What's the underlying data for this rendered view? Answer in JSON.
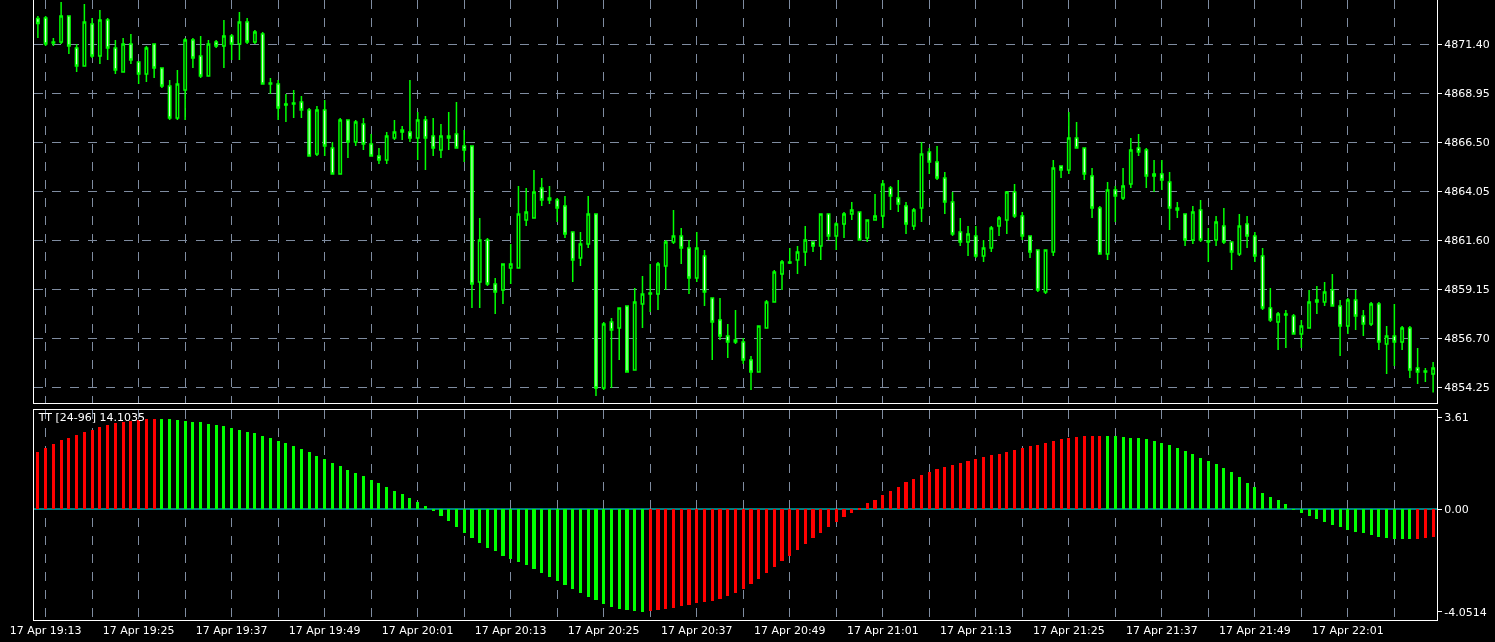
{
  "chart_data": [
    {
      "type": "candlestick",
      "color": "#00ff00",
      "tick_labels": "y",
      "grid": true,
      "categories": [
        null,
        null,
        null,
        null,
        null,
        null,
        null,
        null,
        null,
        null,
        null,
        null,
        null,
        null,
        null,
        null,
        null,
        null,
        null,
        null,
        null,
        null,
        null,
        null,
        null,
        null,
        null,
        null,
        null,
        null,
        null,
        null,
        null,
        null,
        null,
        null,
        null,
        null,
        null,
        null,
        null,
        null,
        null,
        null,
        null,
        null,
        null,
        null,
        null,
        null,
        null,
        null,
        null,
        null,
        null,
        null,
        null,
        null,
        null,
        null,
        null,
        null,
        null,
        null,
        null,
        null,
        null,
        null,
        null,
        null,
        null,
        null,
        null,
        null,
        null,
        null,
        null,
        null,
        null,
        null,
        null,
        null,
        null,
        null,
        null,
        null,
        null,
        null,
        null,
        null,
        null,
        null,
        null,
        null,
        null,
        null,
        null,
        null,
        null,
        null,
        null,
        null,
        null,
        null,
        null,
        null,
        null,
        null,
        null,
        null,
        null,
        null,
        null,
        null,
        null,
        null,
        null,
        null,
        null,
        null,
        null,
        null,
        null,
        null,
        null,
        null,
        null,
        null,
        null,
        null,
        null,
        null,
        null,
        null,
        null,
        null,
        null,
        null,
        null,
        null,
        null,
        null,
        null,
        null,
        null,
        null,
        null,
        null,
        null,
        null,
        null,
        null,
        null,
        null,
        null,
        null,
        null,
        null,
        null,
        null,
        null,
        null,
        null,
        null,
        null,
        null,
        null,
        null,
        null,
        null,
        null,
        null,
        null,
        null,
        null,
        null,
        null,
        null,
        null,
        null,
        null
      ],
      "ylim": [
        4853.45,
        4873.6
      ],
      "yticks": [
        {
          "value": 4854.25,
          "label": "4854.25"
        },
        {
          "value": 4856.7,
          "label": "4856.70"
        },
        {
          "value": 4859.15,
          "label": "4859.15"
        },
        {
          "value": 4861.6,
          "label": "4861.60"
        },
        {
          "value": 4864.05,
          "label": "4864.05"
        },
        {
          "value": 4866.5,
          "label": "4866.50"
        },
        {
          "value": 4868.95,
          "label": "4868.95"
        },
        {
          "value": 4871.4,
          "label": "4871.40"
        }
      ],
      "ohlc": [
        [
          4872.68,
          4872.8,
          4871.7,
          4872.42
        ],
        [
          4872.7,
          4872.8,
          4871.3,
          4871.4
        ],
        [
          4871.5,
          4871.7,
          4871.3,
          4871.45
        ],
        [
          4871.5,
          4873.5,
          4871.4,
          4872.8
        ],
        [
          4872.8,
          4872.8,
          4870.9,
          4871.3
        ],
        [
          4871.2,
          4871.4,
          4870.0,
          4870.3
        ],
        [
          4870.3,
          4873.4,
          4870.3,
          4872.5
        ],
        [
          4872.4,
          4872.7,
          4870.7,
          4870.8
        ],
        [
          4870.8,
          4873.1,
          4870.4,
          4872.6
        ],
        [
          4872.6,
          4872.7,
          4870.6,
          4871.2
        ],
        [
          4871.2,
          4871.6,
          4869.9,
          4870.1
        ],
        [
          4870.0,
          4871.7,
          4870.0,
          4871.4
        ],
        [
          4871.4,
          4871.9,
          4870.4,
          4870.6
        ],
        [
          4870.5,
          4870.5,
          4869.4,
          4869.9
        ],
        [
          4869.9,
          4871.3,
          4869.5,
          4871.2
        ],
        [
          4871.4,
          4871.4,
          4869.7,
          4870.2
        ],
        [
          4870.2,
          4870.2,
          4869.2,
          4869.3
        ],
        [
          4869.3,
          4869.6,
          4867.6,
          4867.7
        ],
        [
          4867.7,
          4870.1,
          4867.6,
          4869.4
        ],
        [
          4869.1,
          4871.7,
          4867.6,
          4871.6
        ],
        [
          4871.6,
          4871.7,
          4870.2,
          4870.7
        ],
        [
          4870.8,
          4871.8,
          4869.7,
          4869.8
        ],
        [
          4869.8,
          4871.6,
          4869.8,
          4871.4
        ],
        [
          4871.5,
          4871.6,
          4871.2,
          4871.3
        ],
        [
          4871.3,
          4872.6,
          4870.2,
          4871.8
        ],
        [
          4871.8,
          4871.9,
          4870.6,
          4871.4
        ],
        [
          4871.4,
          4873.0,
          4870.6,
          4872.5
        ],
        [
          4872.5,
          4872.7,
          4871.4,
          4871.5
        ],
        [
          4871.5,
          4872.1,
          4871.4,
          4872.0
        ],
        [
          4871.9,
          4872.0,
          4869.4,
          4869.4
        ],
        [
          4869.45,
          4869.7,
          4868.9,
          4869.4
        ],
        [
          4869.4,
          4869.6,
          4867.6,
          4868.2
        ],
        [
          4868.4,
          4868.9,
          4867.5,
          4868.35
        ],
        [
          4868.45,
          4869.1,
          4867.7,
          4868.4
        ],
        [
          4868.5,
          4868.8,
          4867.7,
          4868.1
        ],
        [
          4868.1,
          4868.2,
          4865.8,
          4865.8
        ],
        [
          4865.9,
          4868.3,
          4865.8,
          4868.1
        ],
        [
          4868.1,
          4868.6,
          4865.8,
          4866.3
        ],
        [
          4866.2,
          4866.5,
          4864.9,
          4864.9
        ],
        [
          4864.9,
          4867.7,
          4864.9,
          4867.6
        ],
        [
          4867.6,
          4867.6,
          4865.7,
          4866.5
        ],
        [
          4866.5,
          4867.6,
          4866.3,
          4867.5
        ],
        [
          4867.4,
          4867.7,
          4866.1,
          4866.4
        ],
        [
          4866.4,
          4866.9,
          4865.8,
          4865.8
        ],
        [
          4865.8,
          4866.2,
          4865.4,
          4865.6
        ],
        [
          4865.6,
          4867.0,
          4865.4,
          4866.8
        ],
        [
          4866.7,
          4867.6,
          4866.6,
          4867.0
        ],
        [
          4867.0,
          4867.3,
          4866.6,
          4867.1
        ],
        [
          4867.0,
          4869.6,
          4866.5,
          4866.7
        ],
        [
          4866.7,
          4868.0,
          4865.6,
          4867.6
        ],
        [
          4867.6,
          4867.8,
          4865.1,
          4866.7
        ],
        [
          4866.8,
          4867.7,
          4865.8,
          4866.2
        ],
        [
          4866.1,
          4867.4,
          4865.7,
          4866.8
        ],
        [
          4866.7,
          4868.0,
          4866.1,
          4866.8
        ],
        [
          4866.9,
          4868.5,
          4866.2,
          4866.2
        ],
        [
          4866.3,
          4867.1,
          4865.5,
          4866.1
        ],
        [
          4866.3,
          4866.3,
          4858.2,
          4859.4
        ],
        [
          4859.5,
          4862.7,
          4858.2,
          4861.6
        ],
        [
          4861.6,
          4861.7,
          4859.3,
          4859.4
        ],
        [
          4859.4,
          4859.7,
          4857.9,
          4859.0
        ],
        [
          4859.1,
          4860.4,
          4858.4,
          4860.4
        ],
        [
          4860.2,
          4861.4,
          4859.4,
          4860.4
        ],
        [
          4860.2,
          4864.3,
          4860.2,
          4862.9
        ],
        [
          4862.6,
          4864.2,
          4862.3,
          4863.0
        ],
        [
          4862.7,
          4865.1,
          4862.7,
          4864.0
        ],
        [
          4864.2,
          4864.7,
          4863.3,
          4863.6
        ],
        [
          4863.7,
          4864.3,
          4863.4,
          4863.6
        ],
        [
          4863.6,
          4863.7,
          4862.5,
          4863.2
        ],
        [
          4863.3,
          4863.8,
          4861.7,
          4861.9
        ],
        [
          4862.0,
          4862.0,
          4859.5,
          4860.6
        ],
        [
          4860.7,
          4862.0,
          4860.3,
          4861.4
        ],
        [
          4861.4,
          4863.8,
          4861.2,
          4862.9
        ],
        [
          4862.9,
          4862.9,
          4853.8,
          4854.2
        ],
        [
          4854.2,
          4857.5,
          4854.1,
          4857.4
        ],
        [
          4857.5,
          4857.7,
          4854.2,
          4857.1
        ],
        [
          4857.2,
          4858.2,
          4855.6,
          4858.2
        ],
        [
          4858.3,
          4858.3,
          4855.0,
          4855.0
        ],
        [
          4855.1,
          4859.2,
          4855.1,
          4858.5
        ],
        [
          4858.4,
          4859.8,
          4857.2,
          4858.9
        ],
        [
          4858.9,
          4860.4,
          4858.0,
          4858.95
        ],
        [
          4858.9,
          4860.5,
          4858.1,
          4860.4
        ],
        [
          4860.3,
          4861.6,
          4859.1,
          4861.5
        ],
        [
          4861.5,
          4863.1,
          4861.4,
          4861.8
        ],
        [
          4861.8,
          4862.2,
          4860.4,
          4861.2
        ],
        [
          4861.2,
          4861.6,
          4858.9,
          4859.7
        ],
        [
          4859.7,
          4862.0,
          4859.5,
          4861.2
        ],
        [
          4860.8,
          4861.1,
          4858.3,
          4859.0
        ],
        [
          4858.7,
          4858.7,
          4855.6,
          4857.5
        ],
        [
          4857.6,
          4858.7,
          4856.6,
          4856.8
        ],
        [
          4856.8,
          4857.4,
          4855.7,
          4856.5
        ],
        [
          4856.6,
          4858.1,
          4856.4,
          4856.5
        ],
        [
          4856.5,
          4856.7,
          4855.4,
          4855.6
        ],
        [
          4855.6,
          4855.8,
          4854.1,
          4855.0
        ],
        [
          4855.0,
          4857.3,
          4855.0,
          4857.3
        ],
        [
          4857.2,
          4858.6,
          4857.2,
          4858.5
        ],
        [
          4858.5,
          4860.1,
          4858.5,
          4860.0
        ],
        [
          4859.9,
          4860.6,
          4859.1,
          4860.5
        ],
        [
          4860.45,
          4861.2,
          4860.4,
          4860.5
        ],
        [
          4860.6,
          4861.3,
          4859.9,
          4861.0
        ],
        [
          4861.0,
          4862.3,
          4860.3,
          4861.6
        ],
        [
          4861.5,
          4861.5,
          4861.0,
          4861.3
        ],
        [
          4861.3,
          4862.9,
          4860.6,
          4862.9
        ],
        [
          4862.9,
          4862.9,
          4861.6,
          4861.8
        ],
        [
          4861.8,
          4862.5,
          4861.1,
          4862.4
        ],
        [
          4862.4,
          4863.0,
          4861.7,
          4862.9
        ],
        [
          4862.9,
          4863.5,
          4862.6,
          4863.1
        ],
        [
          4863.0,
          4863.0,
          4861.6,
          4861.6
        ],
        [
          4861.7,
          4862.6,
          4861.5,
          4862.6
        ],
        [
          4862.6,
          4863.9,
          4862.6,
          4862.8
        ],
        [
          4862.8,
          4864.6,
          4862.2,
          4864.4
        ],
        [
          4864.2,
          4864.3,
          4863.1,
          4863.8
        ],
        [
          4863.7,
          4864.6,
          4863.0,
          4863.4
        ],
        [
          4863.3,
          4863.5,
          4861.9,
          4862.4
        ],
        [
          4862.3,
          4863.2,
          4862.1,
          4863.1
        ],
        [
          4863.2,
          4866.5,
          4862.5,
          4865.9
        ],
        [
          4866.0,
          4866.2,
          4864.9,
          4865.5
        ],
        [
          4865.5,
          4866.3,
          4864.6,
          4864.7
        ],
        [
          4864.7,
          4865.0,
          4862.9,
          4863.5
        ],
        [
          4863.5,
          4864.0,
          4861.8,
          4861.9
        ],
        [
          4862.0,
          4862.7,
          4861.3,
          4861.5
        ],
        [
          4861.5,
          4862.3,
          4860.8,
          4861.9
        ],
        [
          4861.8,
          4862.3,
          4860.7,
          4860.8
        ],
        [
          4860.8,
          4861.6,
          4860.5,
          4861.2
        ],
        [
          4861.2,
          4862.3,
          4861.0,
          4862.2
        ],
        [
          4862.3,
          4862.8,
          4861.8,
          4862.7
        ],
        [
          4862.6,
          4864.0,
          4861.9,
          4864.0
        ],
        [
          4864.0,
          4864.4,
          4862.7,
          4862.8
        ],
        [
          4862.8,
          4863.0,
          4861.6,
          4861.8
        ],
        [
          4861.8,
          4861.8,
          4860.7,
          4861.0
        ],
        [
          4861.1,
          4861.1,
          4859.0,
          4859.1
        ],
        [
          4859.0,
          4861.1,
          4858.9,
          4861.1
        ],
        [
          4861.0,
          4865.6,
          4860.8,
          4865.2
        ],
        [
          4865.3,
          4865.3,
          4864.7,
          4865.1
        ],
        [
          4865.1,
          4868.0,
          4864.9,
          4866.7
        ],
        [
          4866.7,
          4867.5,
          4866.2,
          4866.2
        ],
        [
          4866.2,
          4866.2,
          4864.6,
          4864.9
        ],
        [
          4864.8,
          4865.2,
          4862.7,
          4863.2
        ],
        [
          4863.2,
          4863.3,
          4860.9,
          4860.9
        ],
        [
          4860.9,
          4864.5,
          4860.6,
          4864.1
        ],
        [
          4864.1,
          4864.3,
          4862.5,
          4863.8
        ],
        [
          4863.7,
          4865.2,
          4863.6,
          4864.3
        ],
        [
          4864.4,
          4866.7,
          4864.2,
          4866.1
        ],
        [
          4866.2,
          4866.9,
          4865.8,
          4866.0
        ],
        [
          4866.1,
          4866.2,
          4864.2,
          4864.8
        ],
        [
          4864.9,
          4865.6,
          4864.0,
          4864.8
        ],
        [
          4864.9,
          4865.6,
          4864.1,
          4864.6
        ],
        [
          4864.5,
          4865.0,
          4862.1,
          4863.2
        ],
        [
          4863.2,
          4863.5,
          4862.7,
          4863.1
        ],
        [
          4862.9,
          4862.9,
          4861.3,
          4861.6
        ],
        [
          4861.6,
          4863.3,
          4861.4,
          4863.0
        ],
        [
          4863.1,
          4863.6,
          4861.5,
          4861.6
        ],
        [
          4861.55,
          4862.2,
          4860.5,
          4861.5
        ],
        [
          4861.6,
          4862.8,
          4861.3,
          4862.5
        ],
        [
          4862.3,
          4863.2,
          4861.4,
          4861.5
        ],
        [
          4861.5,
          4861.5,
          4860.1,
          4861.0
        ],
        [
          4860.9,
          4862.9,
          4860.8,
          4862.3
        ],
        [
          4862.4,
          4862.8,
          4861.2,
          4861.8
        ],
        [
          4861.8,
          4862.0,
          4860.5,
          4860.8
        ],
        [
          4860.8,
          4861.2,
          4858.1,
          4858.2
        ],
        [
          4858.2,
          4859.2,
          4857.5,
          4857.6
        ],
        [
          4857.5,
          4858.0,
          4856.1,
          4857.9
        ],
        [
          4857.85,
          4858.1,
          4856.2,
          4857.9
        ],
        [
          4857.8,
          4857.9,
          4856.9,
          4856.9
        ],
        [
          4856.9,
          4857.6,
          4856.2,
          4857.3
        ],
        [
          4857.2,
          4859.1,
          4857.2,
          4858.5
        ],
        [
          4858.5,
          4859.3,
          4857.9,
          4858.6
        ],
        [
          4858.5,
          4859.5,
          4858.3,
          4859.0
        ],
        [
          4859.1,
          4859.9,
          4858.3,
          4858.3
        ],
        [
          4858.3,
          4858.6,
          4855.8,
          4857.3
        ],
        [
          4857.3,
          4858.7,
          4856.9,
          4858.6
        ],
        [
          4858.6,
          4859.1,
          4857.1,
          4857.8
        ],
        [
          4857.8,
          4858.1,
          4856.8,
          4857.4
        ],
        [
          4857.4,
          4858.5,
          4857.3,
          4858.4
        ],
        [
          4858.4,
          4858.5,
          4856.1,
          4856.5
        ],
        [
          4856.4,
          4857.3,
          4854.9,
          4856.8
        ],
        [
          4856.8,
          4858.4,
          4855.3,
          4856.5
        ],
        [
          4856.5,
          4857.3,
          4856.1,
          4857.2
        ],
        [
          4857.2,
          4857.3,
          4854.7,
          4855.1
        ],
        [
          4855.2,
          4856.2,
          4854.4,
          4855.0
        ],
        [
          4855.05,
          4855.2,
          4854.5,
          4855.0
        ],
        [
          4854.9,
          4855.5,
          4853.97,
          4855.2
        ]
      ]
    },
    {
      "type": "bar",
      "title": "TT [24-96] 14.1035",
      "grid": "x",
      "categories": [
        null,
        "17 Apr 19:13",
        null,
        null,
        null,
        null,
        null,
        null,
        null,
        null,
        null,
        null,
        null,
        "17 Apr 19:25",
        null,
        null,
        null,
        null,
        null,
        null,
        null,
        null,
        null,
        null,
        null,
        "17 Apr 19:37",
        null,
        null,
        null,
        null,
        null,
        null,
        null,
        null,
        null,
        null,
        null,
        "17 Apr 19:49",
        null,
        null,
        null,
        null,
        null,
        null,
        null,
        null,
        null,
        null,
        null,
        "17 Apr 20:01",
        null,
        null,
        null,
        null,
        null,
        null,
        null,
        null,
        null,
        null,
        null,
        "17 Apr 20:13",
        null,
        null,
        null,
        null,
        null,
        null,
        null,
        null,
        null,
        null,
        null,
        "17 Apr 20:25",
        null,
        null,
        null,
        null,
        null,
        null,
        null,
        null,
        null,
        null,
        null,
        "17 Apr 20:37",
        null,
        null,
        null,
        null,
        null,
        null,
        null,
        null,
        null,
        null,
        null,
        "17 Apr 20:49",
        null,
        null,
        null,
        null,
        null,
        null,
        null,
        null,
        null,
        null,
        null,
        "17 Apr 21:01",
        null,
        null,
        null,
        null,
        null,
        null,
        null,
        null,
        null,
        null,
        null,
        "17 Apr 21:13",
        null,
        null,
        null,
        null,
        null,
        null,
        null,
        null,
        null,
        null,
        null,
        "17 Apr 21:25",
        null,
        null,
        null,
        null,
        null,
        null,
        null,
        null,
        null,
        null,
        null,
        "17 Apr 21:37",
        null,
        null,
        null,
        null,
        null,
        null,
        null,
        null,
        null,
        null,
        null,
        "17 Apr 21:49",
        null,
        null,
        null,
        null,
        null,
        null,
        null,
        null,
        null,
        null,
        null,
        "17 Apr 22:01",
        null,
        null,
        null,
        null,
        null,
        null,
        null,
        null,
        null,
        null,
        null
      ],
      "ylim": [
        -4.37,
        3.9
      ],
      "yticks": [
        -4.0514,
        {
          "value": 0,
          "label": "0.00"
        },
        3.61
      ],
      "ref_lines": [
        {
          "axis": "y",
          "value": 0,
          "color": "#00ffff"
        }
      ],
      "values": [
        2.25,
        2.4,
        2.56,
        2.7,
        2.79,
        2.91,
        3.04,
        3.13,
        3.24,
        3.32,
        3.4,
        3.43,
        3.47,
        3.52,
        3.53,
        3.55,
        3.55,
        3.53,
        3.52,
        3.47,
        3.44,
        3.41,
        3.36,
        3.32,
        3.26,
        3.18,
        3.13,
        3.05,
        2.98,
        2.88,
        2.81,
        2.67,
        2.59,
        2.47,
        2.36,
        2.23,
        2.09,
        1.97,
        1.81,
        1.69,
        1.53,
        1.43,
        1.3,
        1.16,
        1.01,
        0.88,
        0.73,
        0.6,
        0.45,
        0.29,
        0.11,
        -0.09,
        -0.28,
        -0.48,
        -0.7,
        -0.93,
        -1.13,
        -1.32,
        -1.52,
        -1.64,
        -1.83,
        -1.95,
        -2.09,
        -2.22,
        -2.37,
        -2.53,
        -2.68,
        -2.84,
        -2.99,
        -3.15,
        -3.3,
        -3.46,
        -3.58,
        -3.74,
        -3.84,
        -3.92,
        -3.97,
        -4.0,
        -4.05,
        -4.0,
        -3.97,
        -3.92,
        -3.88,
        -3.81,
        -3.77,
        -3.72,
        -3.66,
        -3.61,
        -3.53,
        -3.43,
        -3.3,
        -3.15,
        -2.96,
        -2.76,
        -2.53,
        -2.29,
        -2.06,
        -1.83,
        -1.6,
        -1.36,
        -1.16,
        -0.93,
        -0.71,
        -0.51,
        -0.33,
        -0.17,
        0.03,
        0.22,
        0.37,
        0.57,
        0.73,
        0.88,
        1.07,
        1.19,
        1.35,
        1.47,
        1.58,
        1.66,
        1.74,
        1.81,
        1.89,
        1.97,
        2.05,
        2.12,
        2.17,
        2.25,
        2.33,
        2.4,
        2.47,
        2.53,
        2.59,
        2.67,
        2.74,
        2.79,
        2.84,
        2.87,
        2.87,
        2.87,
        2.87,
        2.87,
        2.84,
        2.81,
        2.78,
        2.74,
        2.67,
        2.59,
        2.51,
        2.4,
        2.28,
        2.16,
        2.0,
        1.89,
        1.77,
        1.61,
        1.44,
        1.28,
        1.04,
        0.85,
        0.64,
        0.48,
        0.35,
        0.19,
        -0.02,
        -0.16,
        -0.27,
        -0.4,
        -0.53,
        -0.64,
        -0.72,
        -0.83,
        -0.91,
        -0.96,
        -1.04,
        -1.09,
        -1.14,
        -1.17,
        -1.17,
        -1.17,
        -1.17,
        -1.14,
        -1.09
      ],
      "colors": [
        "#ff0000",
        "#ff0000",
        "#ff0000",
        "#ff0000",
        "#ff0000",
        "#ff0000",
        "#ff0000",
        "#ff0000",
        "#ff0000",
        "#ff0000",
        "#ff0000",
        "#ff0000",
        "#ff0000",
        "#ff0000",
        "#ff0000",
        "#ff0000",
        "#00ff00",
        "#00ff00",
        "#00ff00",
        "#00ff00",
        "#00ff00",
        "#00ff00",
        "#00ff00",
        "#00ff00",
        "#00ff00",
        "#00ff00",
        "#00ff00",
        "#00ff00",
        "#00ff00",
        "#00ff00",
        "#00ff00",
        "#00ff00",
        "#00ff00",
        "#00ff00",
        "#00ff00",
        "#00ff00",
        "#00ff00",
        "#00ff00",
        "#00ff00",
        "#00ff00",
        "#00ff00",
        "#00ff00",
        "#00ff00",
        "#00ff00",
        "#00ff00",
        "#00ff00",
        "#00ff00",
        "#00ff00",
        "#00ff00",
        "#00ff00",
        "#00ff00",
        "#00ff00",
        "#00ff00",
        "#00ff00",
        "#00ff00",
        "#00ff00",
        "#00ff00",
        "#00ff00",
        "#00ff00",
        "#00ff00",
        "#00ff00",
        "#00ff00",
        "#00ff00",
        "#00ff00",
        "#00ff00",
        "#00ff00",
        "#00ff00",
        "#00ff00",
        "#00ff00",
        "#00ff00",
        "#00ff00",
        "#00ff00",
        "#00ff00",
        "#00ff00",
        "#00ff00",
        "#00ff00",
        "#00ff00",
        "#00ff00",
        "#00ff00",
        "#ff0000",
        "#ff0000",
        "#ff0000",
        "#ff0000",
        "#ff0000",
        "#ff0000",
        "#ff0000",
        "#ff0000",
        "#ff0000",
        "#ff0000",
        "#ff0000",
        "#ff0000",
        "#ff0000",
        "#ff0000",
        "#ff0000",
        "#ff0000",
        "#ff0000",
        "#ff0000",
        "#ff0000",
        "#ff0000",
        "#ff0000",
        "#ff0000",
        "#ff0000",
        "#ff0000",
        "#ff0000",
        "#ff0000",
        "#ff0000",
        "#ff0000",
        "#ff0000",
        "#ff0000",
        "#ff0000",
        "#ff0000",
        "#ff0000",
        "#ff0000",
        "#ff0000",
        "#ff0000",
        "#ff0000",
        "#ff0000",
        "#ff0000",
        "#ff0000",
        "#ff0000",
        "#ff0000",
        "#ff0000",
        "#ff0000",
        "#ff0000",
        "#ff0000",
        "#ff0000",
        "#ff0000",
        "#ff0000",
        "#ff0000",
        "#ff0000",
        "#ff0000",
        "#ff0000",
        "#ff0000",
        "#ff0000",
        "#ff0000",
        "#ff0000",
        "#ff0000",
        "#ff0000",
        "#00ff00",
        "#00ff00",
        "#00ff00",
        "#00ff00",
        "#00ff00",
        "#00ff00",
        "#00ff00",
        "#00ff00",
        "#00ff00",
        "#00ff00",
        "#00ff00",
        "#00ff00",
        "#00ff00",
        "#00ff00",
        "#00ff00",
        "#00ff00",
        "#00ff00",
        "#00ff00",
        "#00ff00",
        "#00ff00",
        "#00ff00",
        "#00ff00",
        "#00ff00",
        "#00ff00",
        "#00ff00",
        "#00ff00",
        "#00ff00",
        "#00ff00",
        "#00ff00",
        "#00ff00",
        "#00ff00",
        "#00ff00",
        "#00ff00",
        "#00ff00",
        "#00ff00",
        "#00ff00",
        "#00ff00",
        "#00ff00",
        "#00ff00",
        "#00ff00",
        "#ff0000",
        "#ff0000",
        "#ff0000"
      ]
    }
  ]
}
